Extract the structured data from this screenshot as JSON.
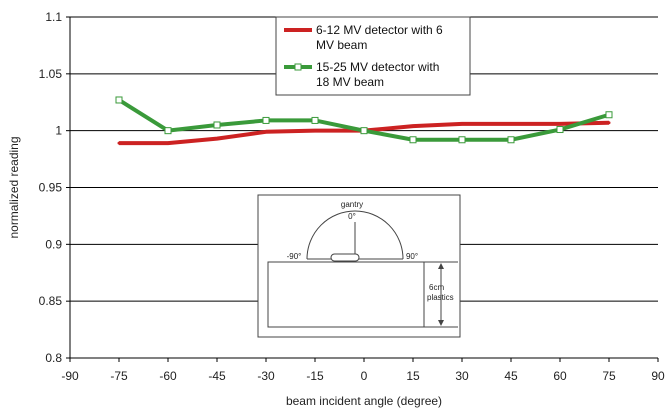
{
  "chart_data": {
    "type": "line",
    "title": "",
    "xlabel": "beam incident angle (degree)",
    "ylabel": "normalized reading",
    "xlim": [
      -90,
      90
    ],
    "ylim": [
      0.8,
      1.1
    ],
    "x_ticks": [
      -90,
      -75,
      -60,
      -45,
      -30,
      -15,
      0,
      15,
      30,
      45,
      60,
      75,
      90
    ],
    "y_ticks": [
      0.8,
      0.85,
      0.9,
      0.95,
      1.0,
      1.05,
      1.1
    ],
    "y_tick_labels": [
      "0.8",
      "0.85",
      "0.9",
      "0.95",
      "1",
      "1.05",
      "1.1"
    ],
    "grid": "horizontal",
    "legend_placement": "top-center",
    "series": [
      {
        "name": "6-12 MV detector with 6 MV beam",
        "name_lines": [
          "6-12 MV detector with 6",
          "MV beam"
        ],
        "color": "#cc2222",
        "marker": "line",
        "x": [
          -75,
          -60,
          -45,
          -30,
          -15,
          0,
          15,
          30,
          45,
          60,
          75
        ],
        "y": [
          0.989,
          0.989,
          0.993,
          0.999,
          1.0,
          1.0,
          1.004,
          1.006,
          1.006,
          1.006,
          1.007
        ]
      },
      {
        "name": "15-25 MV detector with 18 MV beam",
        "name_lines": [
          "15-25 MV detector with",
          "18 MV beam"
        ],
        "color": "#3a9a3a",
        "marker": "square",
        "x": [
          -75,
          -60,
          -45,
          -30,
          -15,
          0,
          15,
          30,
          45,
          60,
          75
        ],
        "y": [
          1.027,
          1.0,
          1.005,
          1.009,
          1.009,
          1.0,
          0.992,
          0.992,
          0.992,
          1.001,
          1.014
        ]
      }
    ],
    "inset": {
      "gantry_label": "gantry",
      "angle_top": "0°",
      "angle_left": "-90°",
      "angle_right": "90°",
      "depth_label_1": "6cm",
      "depth_label_2": "plastics"
    }
  }
}
